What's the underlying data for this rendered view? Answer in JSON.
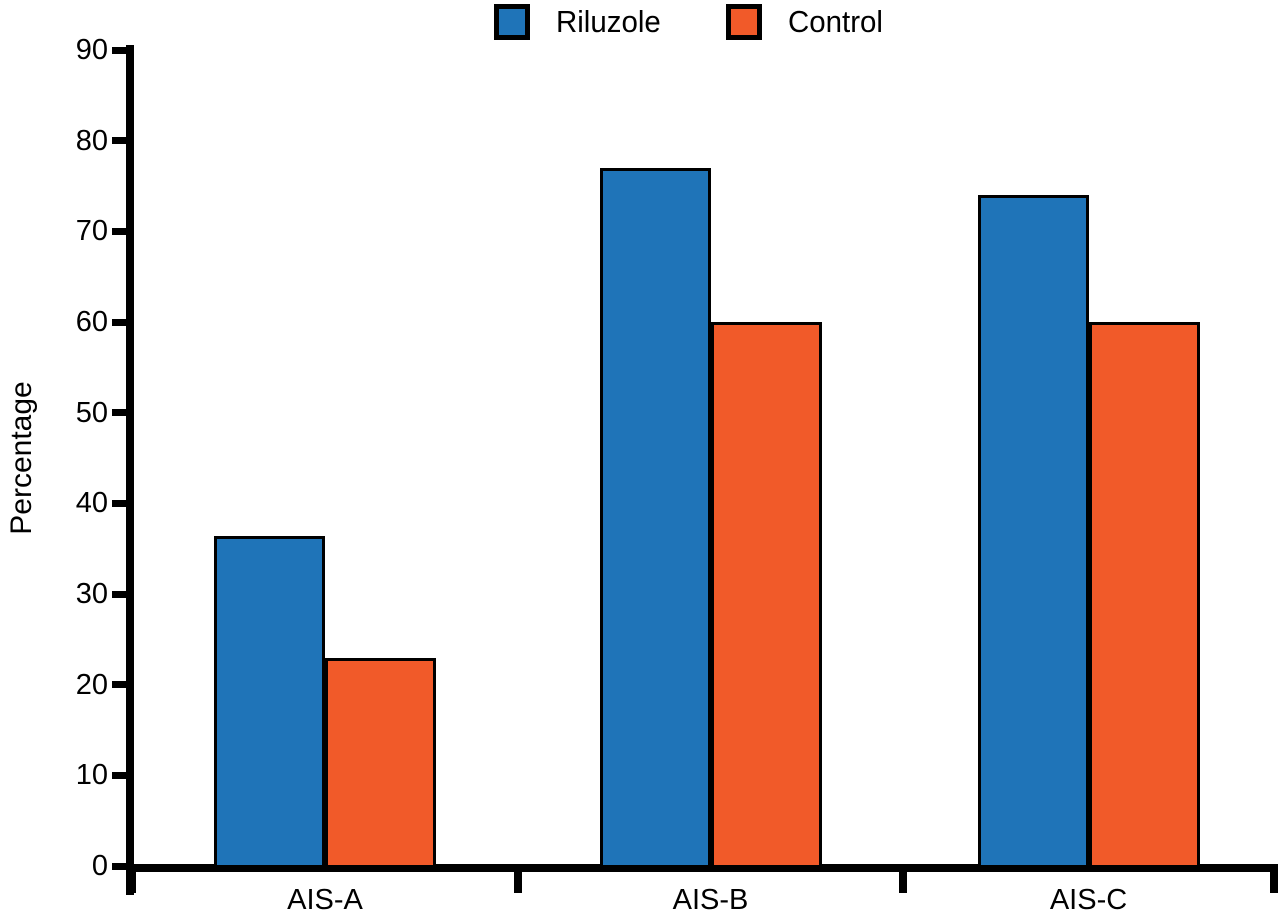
{
  "chart_data": {
    "type": "bar",
    "title": "",
    "xlabel": "",
    "ylabel": "Percentage",
    "categories": [
      "AIS-A",
      "AIS-B",
      "AIS-C"
    ],
    "series": [
      {
        "name": "Riluzole",
        "color": "#1f74b8",
        "values": [
          36.4,
          77,
          74
        ]
      },
      {
        "name": "Control",
        "color": "#f15a29",
        "values": [
          22.9,
          60,
          60
        ]
      }
    ],
    "ylim": [
      0,
      90
    ],
    "yticks": [
      0,
      10,
      20,
      30,
      40,
      50,
      60,
      70,
      80,
      90
    ],
    "legend_position": "top-center",
    "grid": false,
    "bar_border_color": "#000000",
    "axis_color": "#000000"
  }
}
